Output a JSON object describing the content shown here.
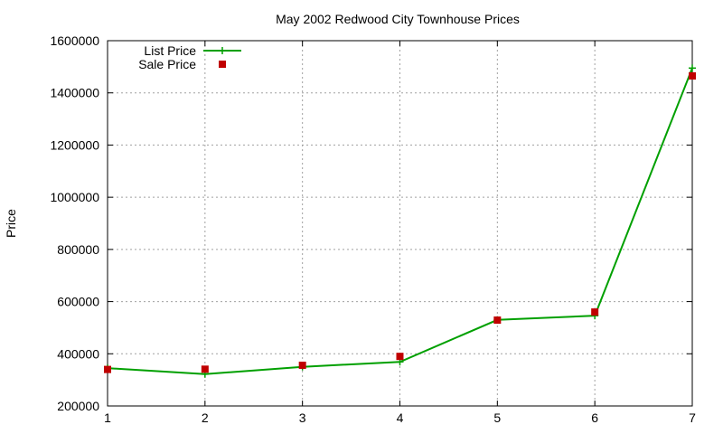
{
  "chart_data": {
    "type": "line",
    "title": "May 2002 Redwood City Townhouse Prices",
    "xlabel": "",
    "ylabel": "Price",
    "x": [
      1,
      2,
      3,
      4,
      5,
      6,
      7
    ],
    "xlim": [
      1,
      7
    ],
    "ylim": [
      200000,
      1600000
    ],
    "xticks": [
      "1",
      "2",
      "3",
      "4",
      "5",
      "6",
      "7"
    ],
    "yticks": [
      "200000",
      "400000",
      "600000",
      "800000",
      "1000000",
      "1200000",
      "1400000",
      "1600000"
    ],
    "grid": true,
    "legend_position": "top-left",
    "series": [
      {
        "name": "List Price",
        "style": "lines+points",
        "marker": "plus",
        "color": "#00a000",
        "values": [
          345000,
          322000,
          350000,
          369000,
          530000,
          546000,
          1495000
        ]
      },
      {
        "name": "Sale Price",
        "style": "points",
        "marker": "square",
        "color": "#c00000",
        "values": [
          340000,
          341000,
          356000,
          390000,
          529000,
          560000,
          1465000
        ]
      }
    ]
  }
}
